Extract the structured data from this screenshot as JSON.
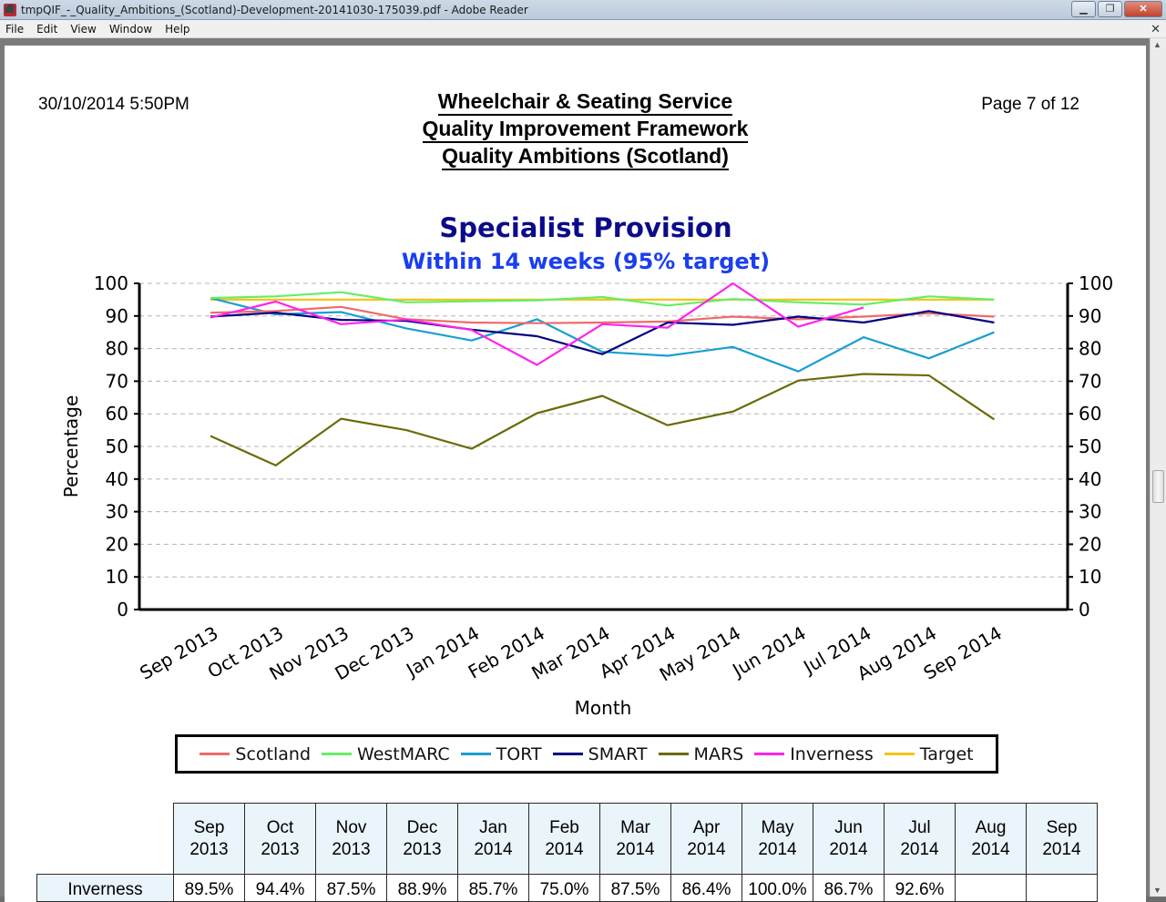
{
  "window": {
    "title": "tmpQIF_-_Quality_Ambitions_(Scotland)-Development-20141030-175039.pdf - Adobe Reader",
    "menu": [
      "File",
      "Edit",
      "View",
      "Window",
      "Help"
    ]
  },
  "header": {
    "datetime": "30/10/2014 5:50PM",
    "page": "Page 7 of 12",
    "line1": "Wheelchair & Seating Service",
    "line2": "Quality Improvement Framework",
    "line3": "Quality Ambitions (Scotland)"
  },
  "chart_data": {
    "type": "line",
    "title": "Specialist Provision",
    "subtitle": "Within 14 weeks (95% target)",
    "xlabel": "Month",
    "ylabel": "Percentage",
    "ylim": [
      0,
      100
    ],
    "yticks": [
      0,
      10,
      20,
      30,
      40,
      50,
      60,
      70,
      80,
      90,
      100
    ],
    "grid": true,
    "legend_position": "bottom",
    "categories": [
      "Sep 2013",
      "Oct 2013",
      "Nov 2013",
      "Dec 2013",
      "Jan 2014",
      "Feb 2014",
      "Mar 2014",
      "Apr 2014",
      "May 2014",
      "Jun 2014",
      "Jul 2014",
      "Aug 2014",
      "Sep 2014"
    ],
    "series": [
      {
        "name": "Scotland",
        "color": "#f06a6a",
        "values": [
          91.0,
          91.5,
          92.8,
          89.0,
          88.0,
          87.8,
          88.0,
          88.3,
          89.8,
          89.0,
          89.8,
          90.8,
          89.8
        ]
      },
      {
        "name": "WestMARC",
        "color": "#66ee66",
        "values": [
          95.5,
          96.0,
          97.3,
          94.2,
          94.5,
          94.8,
          95.8,
          93.2,
          95.2,
          94.2,
          93.5,
          96.0,
          95.0
        ]
      },
      {
        "name": "TORT",
        "color": "#1a9ed0",
        "values": [
          95.5,
          90.5,
          91.2,
          86.2,
          82.5,
          89.0,
          79.0,
          77.8,
          80.5,
          73.0,
          83.5,
          77.0,
          85.0
        ]
      },
      {
        "name": "SMART",
        "color": "#000080",
        "values": [
          89.8,
          91.0,
          88.8,
          88.5,
          85.8,
          83.8,
          78.3,
          88.0,
          87.3,
          89.8,
          88.0,
          91.5,
          88.0
        ]
      },
      {
        "name": "MARS",
        "color": "#6b6b0a",
        "values": [
          53.2,
          44.2,
          58.5,
          55.0,
          49.3,
          60.2,
          65.5,
          56.5,
          60.7,
          70.2,
          72.2,
          71.8,
          58.3
        ]
      },
      {
        "name": "Inverness",
        "color": "#ff22ee",
        "values": [
          89.5,
          94.4,
          87.5,
          88.9,
          85.7,
          75.0,
          87.5,
          86.4,
          100.0,
          86.7,
          92.6,
          null,
          null
        ]
      },
      {
        "name": "Target",
        "color": "#f5c518",
        "values": [
          95,
          95,
          95,
          95,
          95,
          95,
          95,
          95,
          95,
          95,
          95,
          95,
          95
        ]
      }
    ]
  },
  "table": {
    "columns": [
      [
        "Sep",
        "2013"
      ],
      [
        "Oct",
        "2013"
      ],
      [
        "Nov",
        "2013"
      ],
      [
        "Dec",
        "2013"
      ],
      [
        "Jan",
        "2014"
      ],
      [
        "Feb",
        "2014"
      ],
      [
        "Mar",
        "2014"
      ],
      [
        "Apr",
        "2014"
      ],
      [
        "May",
        "2014"
      ],
      [
        "Jun",
        "2014"
      ],
      [
        "Jul",
        "2014"
      ],
      [
        "Aug",
        "2014"
      ],
      [
        "Sep",
        "2014"
      ]
    ],
    "rows": [
      {
        "label": "Inverness",
        "cells": [
          "89.5%",
          "94.4%",
          "87.5%",
          "88.9%",
          "85.7%",
          "75.0%",
          "87.5%",
          "86.4%",
          "100.0%",
          "86.7%",
          "92.6%",
          "",
          ""
        ]
      }
    ]
  }
}
